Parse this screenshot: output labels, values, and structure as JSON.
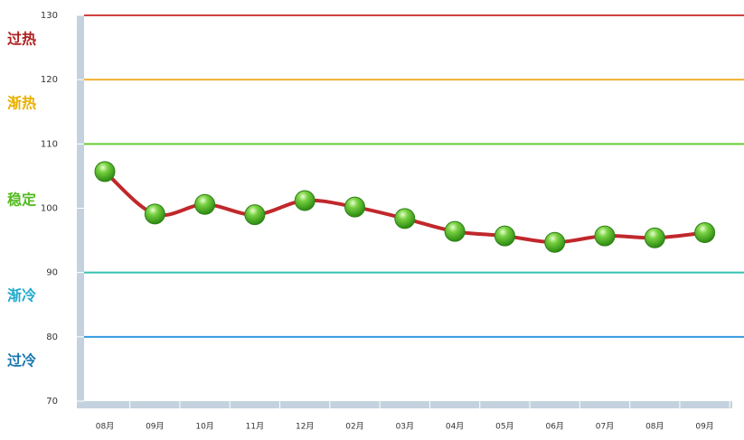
{
  "chart_data": {
    "type": "line",
    "categories": [
      "08月",
      "09月",
      "10月",
      "11月",
      "12月",
      "02月",
      "03月",
      "04月",
      "05月",
      "06月",
      "07月",
      "08月",
      "09月"
    ],
    "series": [
      {
        "color": "#c0282c",
        "values": [
          105.7,
          99.1,
          100.6,
          99.0,
          101.2,
          100.2,
          98.4,
          96.4,
          95.7,
          94.7,
          95.7,
          95.4,
          96.2
        ]
      }
    ],
    "ylim": [
      70,
      130
    ],
    "yticks": [
      70,
      80,
      90,
      100,
      110,
      120,
      130
    ],
    "reference_lines": [
      {
        "value": 130,
        "color": "#d04040"
      },
      {
        "value": 120,
        "color": "#f0b030"
      },
      {
        "value": 110,
        "color": "#66cc33"
      },
      {
        "value": 90,
        "color": "#33c0b0"
      },
      {
        "value": 80,
        "color": "#3399dd"
      }
    ],
    "zones": [
      {
        "label": "过热",
        "color": "#b02020"
      },
      {
        "label": "渐热",
        "color": "#e8b000"
      },
      {
        "label": "稳定",
        "color": "#55bb22"
      },
      {
        "label": "渐冷",
        "color": "#22aacc"
      },
      {
        "label": "过冷",
        "color": "#1a78b0"
      }
    ]
  }
}
